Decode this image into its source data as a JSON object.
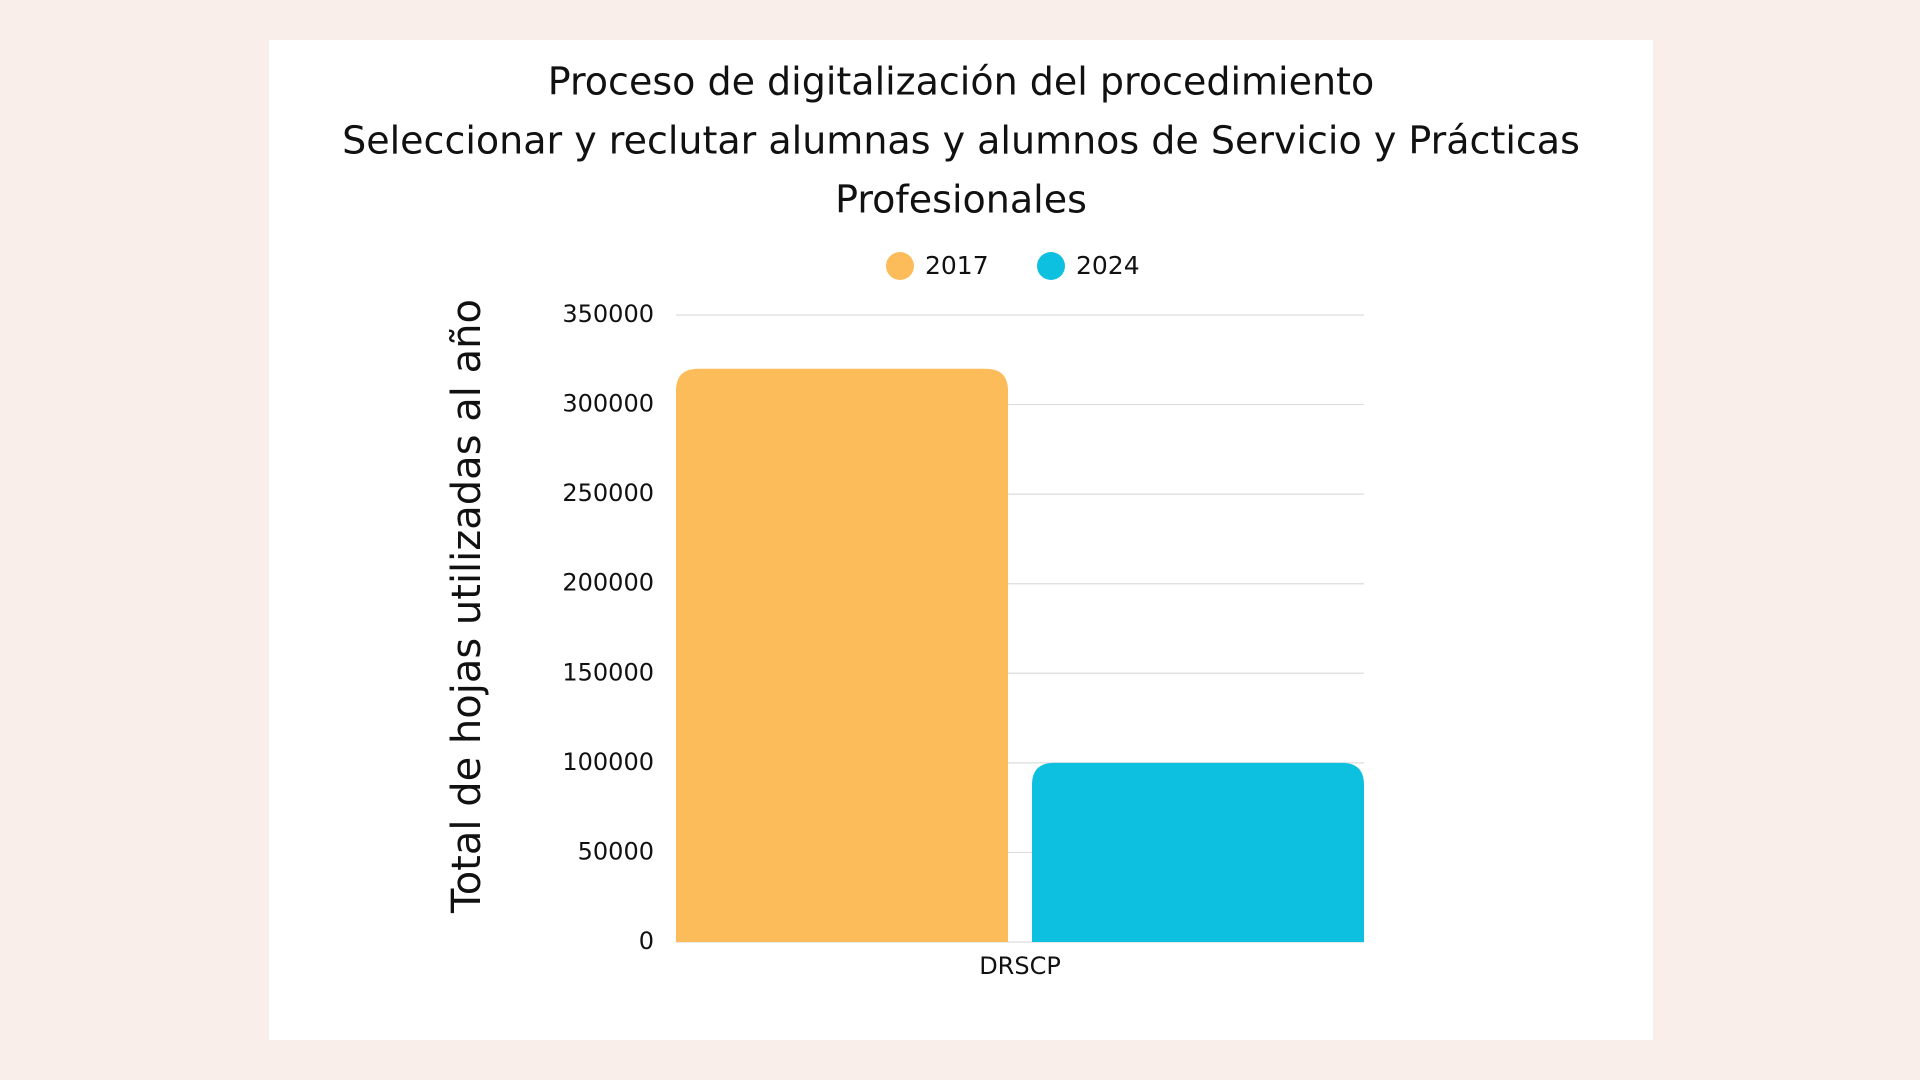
{
  "chart_data": {
    "type": "bar",
    "title": [
      "Proceso de digitalización del procedimiento",
      "Seleccionar y reclutar alumnas y alumnos de Servicio y Prácticas",
      "Profesionales"
    ],
    "y_label": "Total de hojas utilizadas al año",
    "categories": [
      "DRSCP"
    ],
    "series": [
      {
        "name": "2017",
        "color": "#fdbc5a",
        "values": [
          320000
        ]
      },
      {
        "name": "2024",
        "color": "#0ec0e0",
        "values": [
          100000
        ]
      }
    ],
    "ylim": [
      0,
      350000
    ],
    "yticks": [
      0,
      50000,
      100000,
      150000,
      200000,
      250000,
      300000,
      350000
    ],
    "grid": true,
    "legend": "top"
  }
}
